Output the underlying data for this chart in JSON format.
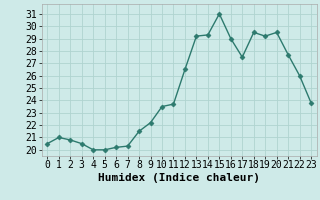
{
  "x": [
    0,
    1,
    2,
    3,
    4,
    5,
    6,
    7,
    8,
    9,
    10,
    11,
    12,
    13,
    14,
    15,
    16,
    17,
    18,
    19,
    20,
    21,
    22,
    23
  ],
  "y": [
    20.5,
    21.0,
    20.8,
    20.5,
    20.0,
    20.0,
    20.2,
    20.3,
    21.5,
    22.2,
    23.5,
    23.7,
    26.5,
    29.2,
    29.3,
    31.0,
    29.0,
    27.5,
    29.5,
    29.2,
    29.5,
    27.7,
    26.0,
    23.8
  ],
  "line_color": "#2d7a6e",
  "marker": "D",
  "markersize": 2.5,
  "bg_color": "#ceeae8",
  "grid_color": "#b0d4d0",
  "xlabel": "Humidex (Indice chaleur)",
  "xlabel_fontsize": 8,
  "tick_fontsize": 7,
  "ylim": [
    19.5,
    31.8
  ],
  "yticks": [
    20,
    21,
    22,
    23,
    24,
    25,
    26,
    27,
    28,
    29,
    30,
    31
  ],
  "xlim": [
    -0.5,
    23.5
  ],
  "xticks": [
    0,
    1,
    2,
    3,
    4,
    5,
    6,
    7,
    8,
    9,
    10,
    11,
    12,
    13,
    14,
    15,
    16,
    17,
    18,
    19,
    20,
    21,
    22,
    23
  ],
  "xtick_labels": [
    "0",
    "1",
    "2",
    "3",
    "4",
    "5",
    "6",
    "7",
    "8",
    "9",
    "10",
    "11",
    "12",
    "13",
    "14",
    "15",
    "16",
    "17",
    "18",
    "19",
    "20",
    "21",
    "22",
    "23"
  ],
  "linewidth": 1.0
}
